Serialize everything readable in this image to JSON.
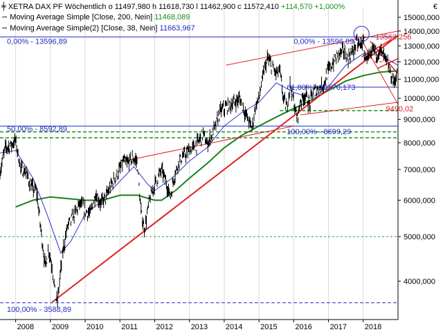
{
  "legend": {
    "main_name": "XETRA DAX PF",
    "interval": "Wöchentlich",
    "ohlc_text": "o 11497,980  h 11618,730  l 11462,900  c 11572,410",
    "change": "+114,570",
    "change_pct": "+1,000%",
    "ma1_label": "Moving Average Simple  [Close, 200, Nein]",
    "ma1_value": "11468,089",
    "ma2_label": "Moving Average Simple(2)  [Close, 38, Nein]",
    "ma2_value": "11663,967"
  },
  "currency_symbol": "€",
  "colors": {
    "price": "#000000",
    "ma200": "#1a7f1a",
    "ma38": "#2b35c9",
    "trend_red": "#e02020",
    "support_green": "#1a8f1a",
    "fib_blue": "#1f2bbf",
    "red_text": "#e02020"
  },
  "chart_data": {
    "type": "line",
    "title": "XETRA DAX PF Wöchentlich",
    "yscale": "log",
    "ylim": [
      3300,
      15800
    ],
    "xlim": [
      2007.55,
      2019.0
    ],
    "y_ticks": [
      "4000,000",
      "5000,000",
      "6000,000",
      "7000,000",
      "8000,000",
      "9000,000",
      "10000,000",
      "11000,000",
      "12000,000",
      "13000,000",
      "14000,000",
      "15000,000"
    ],
    "y_tick_values": [
      4000,
      5000,
      6000,
      7000,
      8000,
      9000,
      10000,
      11000,
      12000,
      13000,
      14000,
      15000
    ],
    "x_ticks": [
      "2008",
      "2009",
      "2010",
      "2011",
      "2012",
      "2013",
      "2014",
      "2015",
      "2016",
      "2017",
      "2018"
    ],
    "x_tick_values": [
      2008,
      2009,
      2010,
      2011,
      2012,
      2013,
      2014,
      2015,
      2016,
      2017,
      2018
    ],
    "price_anchor_points": [
      [
        2007.55,
        6900
      ],
      [
        2007.7,
        7800
      ],
      [
        2007.85,
        7900
      ],
      [
        2008.0,
        8100
      ],
      [
        2008.15,
        7000
      ],
      [
        2008.3,
        6900
      ],
      [
        2008.45,
        6400
      ],
      [
        2008.6,
        6300
      ],
      [
        2008.75,
        5000
      ],
      [
        2008.85,
        4300
      ],
      [
        2008.95,
        4700
      ],
      [
        2009.05,
        4300
      ],
      [
        2009.15,
        3700
      ],
      [
        2009.2,
        3600
      ],
      [
        2009.35,
        4600
      ],
      [
        2009.5,
        5300
      ],
      [
        2009.7,
        5600
      ],
      [
        2009.85,
        5900
      ],
      [
        2010.0,
        5700
      ],
      [
        2010.15,
        5600
      ],
      [
        2010.3,
        6200
      ],
      [
        2010.45,
        5900
      ],
      [
        2010.6,
        6100
      ],
      [
        2010.8,
        6600
      ],
      [
        2011.0,
        7000
      ],
      [
        2011.1,
        7300
      ],
      [
        2011.2,
        7200
      ],
      [
        2011.35,
        7400
      ],
      [
        2011.5,
        7300
      ],
      [
        2011.6,
        5700
      ],
      [
        2011.7,
        5200
      ],
      [
        2011.75,
        5400
      ],
      [
        2011.85,
        6000
      ],
      [
        2012.0,
        6500
      ],
      [
        2012.2,
        7000
      ],
      [
        2012.35,
        6500
      ],
      [
        2012.45,
        6100
      ],
      [
        2012.55,
        6700
      ],
      [
        2012.7,
        7300
      ],
      [
        2012.85,
        7500
      ],
      [
        2013.0,
        7700
      ],
      [
        2013.2,
        7900
      ],
      [
        2013.4,
        8400
      ],
      [
        2013.5,
        7900
      ],
      [
        2013.7,
        8500
      ],
      [
        2013.9,
        9400
      ],
      [
        2014.1,
        9600
      ],
      [
        2014.3,
        9800
      ],
      [
        2014.45,
        10000
      ],
      [
        2014.6,
        9300
      ],
      [
        2014.8,
        8600
      ],
      [
        2014.9,
        9600
      ],
      [
        2015.0,
        10000
      ],
      [
        2015.15,
        11500
      ],
      [
        2015.25,
        12200
      ],
      [
        2015.35,
        11800
      ],
      [
        2015.5,
        11300
      ],
      [
        2015.6,
        11500
      ],
      [
        2015.7,
        10000
      ],
      [
        2015.8,
        9500
      ],
      [
        2015.9,
        10800
      ],
      [
        2016.0,
        9800
      ],
      [
        2016.1,
        9000
      ],
      [
        2016.2,
        9900
      ],
      [
        2016.35,
        10200
      ],
      [
        2016.45,
        9600
      ],
      [
        2016.55,
        10300
      ],
      [
        2016.7,
        10500
      ],
      [
        2016.85,
        10700
      ],
      [
        2017.0,
        11500
      ],
      [
        2017.15,
        12000
      ],
      [
        2017.3,
        12500
      ],
      [
        2017.45,
        12700
      ],
      [
        2017.55,
        12200
      ],
      [
        2017.7,
        12600
      ],
      [
        2017.8,
        13200
      ],
      [
        2017.9,
        13000
      ],
      [
        2018.0,
        13300
      ],
      [
        2018.05,
        12200
      ],
      [
        2018.1,
        12400
      ],
      [
        2018.2,
        12100
      ],
      [
        2018.3,
        12900
      ],
      [
        2018.4,
        12500
      ],
      [
        2018.5,
        12700
      ],
      [
        2018.6,
        12300
      ],
      [
        2018.7,
        11900
      ],
      [
        2018.78,
        11300
      ],
      [
        2018.88,
        10800
      ],
      [
        2018.95,
        11200
      ],
      [
        2019.0,
        11600
      ]
    ],
    "ma200_points": [
      [
        2008.0,
        5800
      ],
      [
        2008.5,
        6000
      ],
      [
        2009.0,
        6100
      ],
      [
        2009.5,
        6050
      ],
      [
        2010.0,
        6000
      ],
      [
        2010.5,
        6000
      ],
      [
        2011.0,
        6150
      ],
      [
        2011.5,
        6150
      ],
      [
        2012.0,
        6000
      ],
      [
        2012.2,
        6000
      ],
      [
        2012.6,
        6300
      ],
      [
        2013.0,
        6700
      ],
      [
        2013.5,
        7200
      ],
      [
        2014.0,
        7800
      ],
      [
        2014.5,
        8300
      ],
      [
        2015.0,
        8700
      ],
      [
        2015.5,
        9100
      ],
      [
        2016.0,
        9500
      ],
      [
        2016.5,
        9900
      ],
      [
        2017.0,
        10400
      ],
      [
        2017.5,
        10900
      ],
      [
        2018.0,
        11200
      ],
      [
        2018.5,
        11400
      ],
      [
        2019.0,
        11470
      ]
    ],
    "ma38_points": [
      [
        2007.55,
        7600
      ],
      [
        2008.0,
        7700
      ],
      [
        2008.5,
        6700
      ],
      [
        2008.9,
        5600
      ],
      [
        2009.3,
        4600
      ],
      [
        2009.6,
        4900
      ],
      [
        2010.0,
        5600
      ],
      [
        2010.5,
        6000
      ],
      [
        2011.0,
        6600
      ],
      [
        2011.4,
        7100
      ],
      [
        2011.8,
        6500
      ],
      [
        2012.0,
        6300
      ],
      [
        2012.5,
        6700
      ],
      [
        2013.0,
        7300
      ],
      [
        2013.5,
        7800
      ],
      [
        2014.0,
        8700
      ],
      [
        2014.5,
        9300
      ],
      [
        2015.0,
        9800
      ],
      [
        2015.5,
        10800
      ],
      [
        2016.0,
        10300
      ],
      [
        2016.5,
        10000
      ],
      [
        2017.0,
        10600
      ],
      [
        2017.5,
        11800
      ],
      [
        2018.0,
        12500
      ],
      [
        2018.5,
        12400
      ],
      [
        2019.0,
        11800
      ]
    ],
    "trend_lines": [
      {
        "x1": 2009.05,
        "y1": 3600,
        "x2": 2019.0,
        "y2": 13700,
        "color": "red",
        "width": 2
      },
      {
        "x1": 2011.1,
        "y1": 7300,
        "x2": 2016.0,
        "y2": 8700,
        "color": "red",
        "width": 1
      },
      {
        "x1": 2014.05,
        "y1": 11800,
        "x2": 2019.0,
        "y2": 14000,
        "color": "red",
        "width": 1
      },
      {
        "x1": 2016.2,
        "y1": 9200,
        "x2": 2019.0,
        "y2": 9800,
        "color": "red",
        "width": 1
      },
      {
        "x1": 2017.9,
        "y1": 13600,
        "x2": 2019.0,
        "y2": 9700,
        "color": "red",
        "width": 1
      },
      {
        "x1": 2017.95,
        "y1": 12300,
        "x2": 2018.8,
        "y2": 13400,
        "color": "red",
        "width": 1.5
      },
      {
        "x1": 2018.2,
        "y1": 13300,
        "x2": 2019.0,
        "y2": 11300,
        "color": "red",
        "width": 1.5
      },
      {
        "x1": 2018.4,
        "y1": 11600,
        "x2": 2019.0,
        "y2": 12200,
        "color": "red",
        "width": 1.5
      }
    ],
    "horizontal_lines": [
      {
        "y": 13596.89,
        "x1": 2007.55,
        "x2": 2019.0,
        "color": "blue"
      },
      {
        "y": 8699.29,
        "x1": 2007.55,
        "x2": 2019.0,
        "color": "blue"
      },
      {
        "y": 3588.89,
        "x1": 2007.55,
        "x2": 2019.0,
        "color": "blue",
        "dashed": true
      },
      {
        "y": 10570.173,
        "x1": 2015.9,
        "x2": 2019.0,
        "color": "blue"
      },
      {
        "y": 8450,
        "x1": 2007.55,
        "x2": 2019.0,
        "color": "green",
        "dashed": true
      },
      {
        "y": 8200,
        "x1": 2007.55,
        "x2": 2019.0,
        "color": "green",
        "dashed": true
      },
      {
        "y": 9400,
        "x1": 2015.6,
        "x2": 2019.0,
        "color": "green",
        "dashed": true
      },
      {
        "y": 5000,
        "x1": 2007.55,
        "x2": 2019.0,
        "color": "green",
        "dashed": true,
        "thin": true
      },
      {
        "y": 12000,
        "x1": 2018.3,
        "x2": 2019.0,
        "color": "red",
        "dashed": true
      }
    ],
    "annotations": [
      {
        "text": "0,00% - 13596,89",
        "x": 2007.75,
        "y": 13596.89,
        "color": "blue",
        "dy": 10
      },
      {
        "text": "0,00% - 13596,89",
        "x": 2016.0,
        "y": 13596.89,
        "color": "blue",
        "dy": 10
      },
      {
        "text": "13563,256",
        "x": 2018.35,
        "y": 13563.256,
        "color": "red",
        "dy": 3
      },
      {
        "text": "61,80% - 10570,173",
        "x": 2015.8,
        "y": 10570.173,
        "color": "blue",
        "dy": 4
      },
      {
        "text": "9490,02",
        "x": 2018.65,
        "y": 9490.02,
        "color": "red",
        "dy": 4
      },
      {
        "text": "50,00% - 8592,89",
        "x": 2007.75,
        "y": 8592.89,
        "color": "blue",
        "dy": 4
      },
      {
        "text": "100,00% - 8699,29",
        "x": 2015.8,
        "y": 8699.29,
        "color": "blue",
        "dy": 12
      },
      {
        "text": "100,00% - 3588,89",
        "x": 2007.75,
        "y": 3588.89,
        "color": "blue",
        "dy": 13
      }
    ],
    "circle_marker": {
      "x": 2017.95,
      "y": 13800
    }
  }
}
